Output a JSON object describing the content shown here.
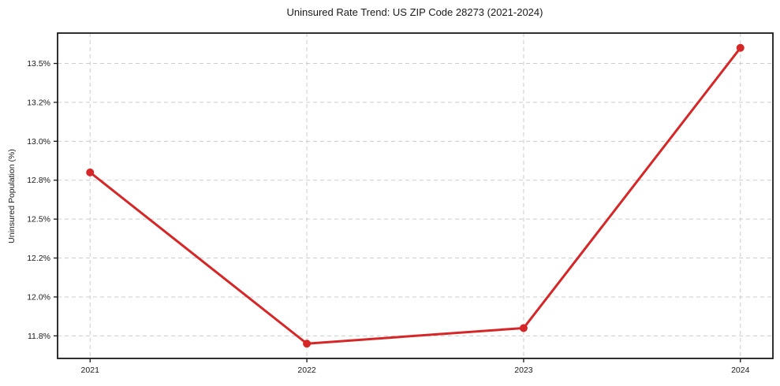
{
  "chart_data": {
    "type": "line",
    "title": "Uninsured Rate Trend: US ZIP Code 28273 (2021-2024)",
    "xlabel": "",
    "ylabel": "Uninsured Population (%)",
    "x": [
      2021,
      2022,
      2023,
      2024
    ],
    "series": [
      {
        "name": "Uninsured rate",
        "values": [
          12.8,
          11.7,
          11.8,
          13.6
        ]
      }
    ],
    "xticks": {
      "values": [
        2021,
        2022,
        2023,
        2024
      ],
      "labels": [
        "2021",
        "2022",
        "2023",
        "2024"
      ]
    },
    "yticks": {
      "values": [
        11.75,
        12.0,
        12.25,
        12.5,
        12.75,
        13.0,
        13.25,
        13.5
      ],
      "labels": [
        "11.8%",
        "12.0%",
        "12.2%",
        "12.5%",
        "12.8%",
        "13.0%",
        "13.2%",
        "13.5%"
      ]
    },
    "xlim": [
      2020.85,
      2024.15
    ],
    "ylim": [
      11.605,
      13.695
    ],
    "grid": true,
    "legend_position": "none",
    "line_color": "#d62728",
    "marker": "circle",
    "grid_color": "#cccccc",
    "axis_color": "#1a1a1a",
    "background_color": "#ffffff"
  }
}
